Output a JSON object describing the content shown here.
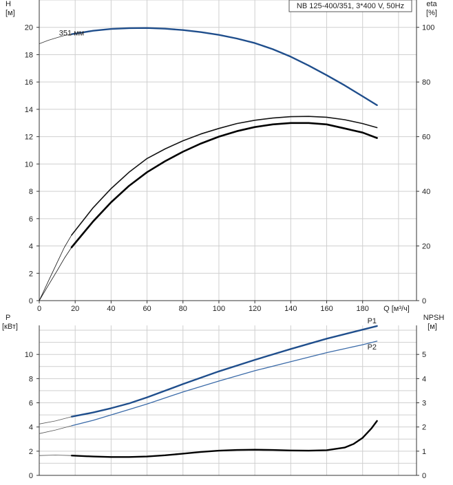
{
  "chart_data": [
    {
      "type": "line",
      "title": "NB 125-400/351, 3*400 V, 50Hz",
      "xlabel": "Q [м³/ч]",
      "ylabel_left": "H",
      "ylabel_left_unit": "[м]",
      "ylabel_right": "eta",
      "ylabel_right_unit": "[%]",
      "xlim": [
        0,
        210
      ],
      "ylim_left": [
        0,
        22
      ],
      "ylim_right": [
        0,
        110
      ],
      "x_ticks": [
        0,
        20,
        40,
        60,
        80,
        100,
        120,
        140,
        160,
        180
      ],
      "y_ticks_left": [
        0,
        2,
        4,
        6,
        8,
        10,
        12,
        14,
        16,
        18,
        20
      ],
      "y_ticks_right": [
        0,
        20,
        40,
        60,
        80,
        100
      ],
      "grid": true,
      "annotations": [
        {
          "text": "351 мм",
          "x": 11,
          "y": 19.6
        }
      ],
      "series": [
        {
          "axis": "left",
          "color": "#1f4e8c",
          "width": 2.4,
          "x": [
            18,
            30,
            40,
            50,
            60,
            70,
            80,
            90,
            100,
            110,
            120,
            130,
            140,
            150,
            160,
            170,
            180,
            188
          ],
          "y": [
            19.5,
            19.75,
            19.88,
            19.94,
            19.95,
            19.9,
            19.8,
            19.65,
            19.45,
            19.18,
            18.85,
            18.4,
            17.85,
            17.2,
            16.5,
            15.75,
            14.95,
            14.3
          ]
        },
        {
          "axis": "left",
          "color": "#333333",
          "width": 0.8,
          "x": [
            0,
            5,
            10,
            14,
            18
          ],
          "y": [
            18.8,
            19.05,
            19.25,
            19.4,
            19.5
          ]
        },
        {
          "axis": "right",
          "color": "#111111",
          "width": 1.6,
          "x": [
            18,
            30,
            40,
            50,
            60,
            70,
            80,
            90,
            100,
            110,
            120,
            130,
            140,
            150,
            160,
            170,
            180,
            188
          ],
          "y": [
            24,
            34,
            41,
            47,
            52,
            55.5,
            58.5,
            61,
            63,
            64.8,
            66,
            66.8,
            67.3,
            67.4,
            67.1,
            66.2,
            64.8,
            63.3
          ]
        },
        {
          "axis": "right",
          "color": "#111111",
          "width": 0.8,
          "x": [
            0,
            5,
            10,
            14,
            18
          ],
          "y": [
            0,
            7,
            14,
            19.5,
            24
          ]
        },
        {
          "axis": "right",
          "color": "#000000",
          "width": 2.6,
          "x": [
            18,
            30,
            40,
            50,
            60,
            70,
            80,
            90,
            100,
            110,
            120,
            130,
            140,
            150,
            160,
            170,
            180,
            188
          ],
          "y": [
            19.5,
            29,
            36,
            42,
            47,
            51,
            54.5,
            57.5,
            60,
            62,
            63.5,
            64.5,
            65,
            65,
            64.5,
            63,
            61.5,
            59.5
          ]
        },
        {
          "axis": "right",
          "color": "#111111",
          "width": 0.8,
          "x": [
            0,
            5,
            10,
            14,
            18
          ],
          "y": [
            0,
            5.5,
            11,
            15.5,
            19.5
          ]
        }
      ]
    },
    {
      "type": "line",
      "xlabel": "",
      "ylabel_left": "P",
      "ylabel_left_unit": "[кВт]",
      "ylabel_right": "NPSH",
      "ylabel_right_unit": "[м]",
      "xlim": [
        0,
        210
      ],
      "ylim_left": [
        0,
        12.4
      ],
      "ylim_right": [
        0,
        6.2
      ],
      "y_ticks_left": [
        0,
        2,
        4,
        6,
        8,
        10
      ],
      "y_ticks_right": [
        0,
        1,
        2,
        3,
        4,
        5
      ],
      "grid": true,
      "series": [
        {
          "name": "P1",
          "axis": "left",
          "color": "#1f4e8c",
          "width": 2.4,
          "x": [
            18,
            30,
            40,
            50,
            60,
            80,
            100,
            120,
            140,
            160,
            180,
            188
          ],
          "y": [
            4.85,
            5.2,
            5.55,
            5.95,
            6.45,
            7.55,
            8.6,
            9.55,
            10.45,
            11.3,
            12.05,
            12.35
          ]
        },
        {
          "axis": "left",
          "color": "#555555",
          "width": 0.8,
          "x": [
            0,
            9,
            18
          ],
          "y": [
            4.25,
            4.5,
            4.85
          ]
        },
        {
          "name": "P2",
          "axis": "left",
          "color": "#3a6aa8",
          "width": 1.3,
          "x": [
            18,
            30,
            40,
            50,
            60,
            80,
            100,
            120,
            140,
            160,
            180,
            188
          ],
          "y": [
            4.1,
            4.55,
            5.0,
            5.45,
            5.9,
            6.9,
            7.8,
            8.65,
            9.4,
            10.15,
            10.8,
            11.1
          ]
        },
        {
          "axis": "left",
          "color": "#555555",
          "width": 0.8,
          "x": [
            0,
            9,
            18
          ],
          "y": [
            3.45,
            3.75,
            4.1
          ]
        },
        {
          "axis": "right",
          "color": "#000000",
          "width": 2.4,
          "x": [
            18,
            30,
            40,
            50,
            60,
            70,
            80,
            90,
            100,
            110,
            120,
            130,
            140,
            150,
            160,
            170,
            175,
            180,
            185,
            188
          ],
          "y": [
            0.82,
            0.78,
            0.76,
            0.76,
            0.78,
            0.83,
            0.9,
            0.97,
            1.02,
            1.05,
            1.06,
            1.05,
            1.03,
            1.02,
            1.04,
            1.15,
            1.3,
            1.55,
            1.95,
            2.25
          ]
        },
        {
          "axis": "right",
          "color": "#555555",
          "width": 0.8,
          "x": [
            0,
            9,
            18
          ],
          "y": [
            0.82,
            0.84,
            0.82
          ]
        }
      ]
    }
  ]
}
